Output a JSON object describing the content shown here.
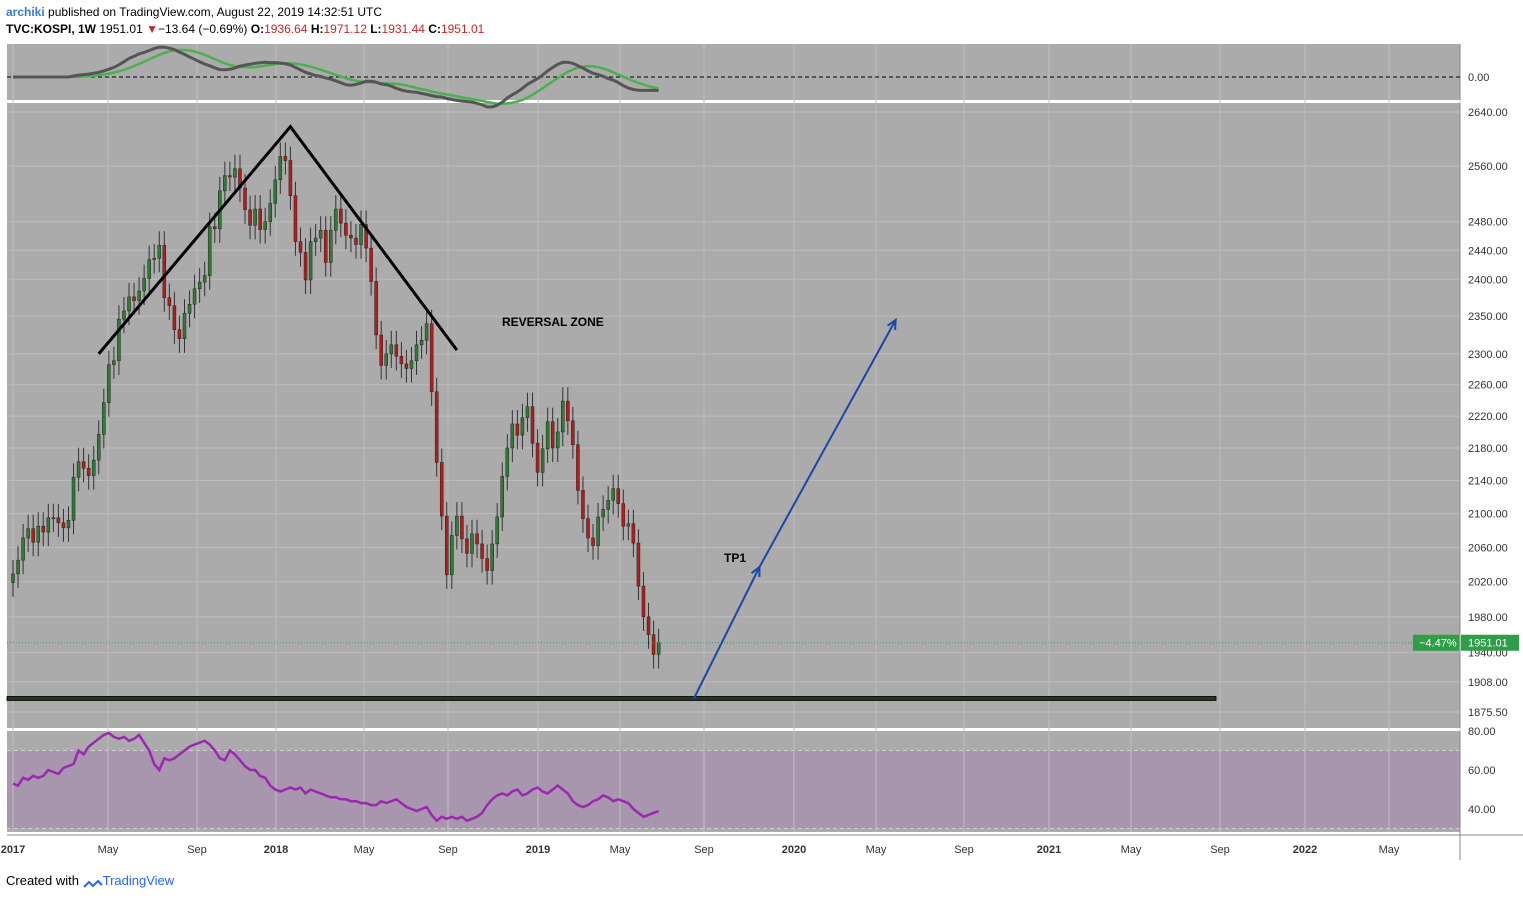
{
  "header": {
    "author": "archiki",
    "published": "published on TradingView.com, August 22, 2019 14:32:51 UTC",
    "symbol": "TVC:KOSPI, 1W",
    "last": "1951.01",
    "change_arrow": "▼",
    "change": "−13.64 (−0.69%)",
    "o_label": "O:",
    "o_value": "1936.64",
    "h_label": "H:",
    "h_value": "1971.12",
    "l_label": "L:",
    "l_value": "1931.44",
    "c_label": "C:",
    "c_value": "1951.01"
  },
  "footer": {
    "created": "Created with",
    "brand": "TradingView"
  },
  "colors": {
    "panel_bg": "#ababab",
    "grid": "#bdbdbd",
    "up": "#2e7d32",
    "down": "#b71c1c",
    "pattern_line": "#000000",
    "projection": "#1a47a8",
    "support": "#1f3a1f",
    "rsi_line": "#9c27b0",
    "rsi_band": "#a796ad",
    "price_badge": "#2e9e48",
    "macd_green": "#4caf50",
    "macd_red": "#a33b3b",
    "macd_grey": "#555555"
  },
  "chart_data": {
    "type": "candlestick",
    "interval": "1W",
    "symbol": "TVC:KOSPI",
    "x_tick_labels": [
      "2017",
      "May",
      "Sep",
      "2018",
      "May",
      "Sep",
      "2019",
      "May",
      "Sep",
      "2020",
      "May",
      "Sep",
      "2021",
      "May",
      "Sep",
      "2022",
      "May"
    ],
    "price_axis_labels": [
      "2640.00",
      "2560.00",
      "2480.00",
      "2440.00",
      "2400.00",
      "2350.00",
      "2300.00",
      "2260.00",
      "2220.00",
      "2180.00",
      "2140.00",
      "2100.00",
      "2060.00",
      "2020.00",
      "1980.00",
      "1940.00",
      "1908.00",
      "1875.50"
    ],
    "macd_axis_labels": [
      "0.00"
    ],
    "rsi_axis_labels": [
      "80.00",
      "60.00",
      "40.00"
    ],
    "last_price_label": "1951.01",
    "last_change_label": "−4.47%",
    "last_price": 1951.01,
    "support_level": 1890,
    "annotations": {
      "reversal": "REVERSAL ZONE",
      "tp1": "TP1"
    },
    "pattern_points": [
      {
        "date": "2017-05-01",
        "price": 2300
      },
      {
        "date": "2018-01-22",
        "price": 2618
      },
      {
        "date": "2018-09-10",
        "price": 2305
      }
    ],
    "projection_points": [
      {
        "date": "2019-08-05",
        "price": 1890
      },
      {
        "date": "2019-11-04",
        "price": 2037
      },
      {
        "date": "2020-05-11",
        "price": 2345
      }
    ],
    "weekly_close": [
      2029,
      2045,
      2071,
      2082,
      2066,
      2085,
      2078,
      2095,
      2095,
      2089,
      2083,
      2092,
      2144,
      2163,
      2155,
      2146,
      2165,
      2197,
      2237,
      2286,
      2291,
      2346,
      2357,
      2376,
      2371,
      2384,
      2401,
      2427,
      2429,
      2447,
      2375,
      2364,
      2332,
      2320,
      2354,
      2366,
      2387,
      2396,
      2405,
      2473,
      2470,
      2524,
      2546,
      2544,
      2556,
      2528,
      2497,
      2475,
      2498,
      2469,
      2480,
      2506,
      2540,
      2574,
      2568,
      2517,
      2452,
      2437,
      2399,
      2452,
      2457,
      2468,
      2423,
      2468,
      2498,
      2478,
      2461,
      2457,
      2448,
      2476,
      2443,
      2397,
      2325,
      2285,
      2300,
      2312,
      2297,
      2287,
      2281,
      2291,
      2312,
      2318,
      2340,
      2251,
      2162,
      2097,
      2028,
      2074,
      2097,
      2070,
      2053,
      2076,
      2064,
      2047,
      2033,
      2064,
      2096,
      2145,
      2180,
      2210,
      2196,
      2218,
      2232,
      2186,
      2150,
      2179,
      2213,
      2180,
      2200,
      2239,
      2214,
      2184,
      2128,
      2094,
      2071,
      2062,
      2096,
      2105,
      2116,
      2130,
      2112,
      2085,
      2088,
      2065,
      2015,
      1980,
      1960,
      1938,
      1951
    ],
    "rsi": [
      53,
      52,
      56,
      55,
      57,
      56,
      57,
      60,
      59,
      58,
      61,
      62,
      63,
      70,
      68,
      72,
      74,
      76,
      78,
      79,
      77,
      76,
      77,
      75,
      76,
      78,
      74,
      70,
      63,
      60,
      66,
      65,
      66,
      68,
      70,
      72,
      73,
      74,
      75,
      73,
      70,
      66,
      65,
      70,
      68,
      65,
      62,
      60,
      60,
      57,
      56,
      52,
      50,
      49,
      50,
      51,
      50,
      51,
      48,
      50,
      49,
      48,
      47,
      46,
      46,
      45,
      45,
      44,
      44,
      43,
      43,
      42,
      42,
      44,
      43,
      44,
      45,
      43,
      41,
      40,
      39,
      40,
      41,
      37,
      34,
      36,
      35,
      36,
      35,
      36,
      34,
      35,
      36,
      38,
      42,
      45,
      47,
      48,
      47,
      49,
      50,
      47,
      48,
      50,
      51,
      49,
      48,
      50,
      52,
      50,
      48,
      44,
      42,
      41,
      42,
      44,
      45,
      47,
      46,
      44,
      45,
      44,
      43,
      40,
      38,
      36,
      37,
      38,
      39
    ]
  }
}
